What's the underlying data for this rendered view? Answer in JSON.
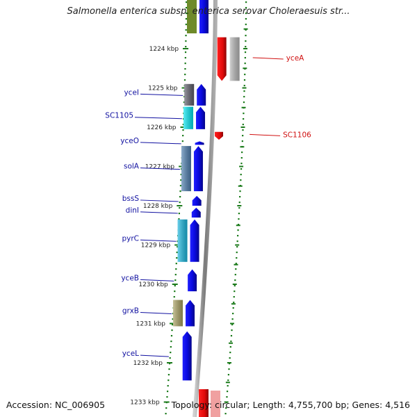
{
  "title": "Salmonella enterica subsp. enterica serovar Choleraesuis str...",
  "footer": {
    "accession": "Accession: NC_006905",
    "summary": "Topology: circular; Length: 4,755,700 bp; Genes: 4,516"
  },
  "colors": {
    "forward_gene": "#0a0ae6",
    "reverse_gene": "#e60a0a",
    "ruler_dots": "#1a7a1a",
    "backbone": "#8a8a8a"
  },
  "ticks": [
    {
      "label": "1224 kbp",
      "kbp": 1224
    },
    {
      "label": "1225 kbp",
      "kbp": 1225
    },
    {
      "label": "1226 kbp",
      "kbp": 1226
    },
    {
      "label": "1227 kbp",
      "kbp": 1227
    },
    {
      "label": "1228 kbp",
      "kbp": 1228
    },
    {
      "label": "1229 kbp",
      "kbp": 1229
    },
    {
      "label": "1230 kbp",
      "kbp": 1230
    },
    {
      "label": "1231 kbp",
      "kbp": 1231
    },
    {
      "label": "1232 kbp",
      "kbp": 1232
    },
    {
      "label": "1233 kbp",
      "kbp": 1233
    }
  ],
  "genes_left": [
    {
      "name": "yceI",
      "start_kbp": 1224.9,
      "end_kbp": 1225.45,
      "cog_color": "#5e5e6a"
    },
    {
      "name": "SC1105",
      "start_kbp": 1225.48,
      "end_kbp": 1226.05,
      "cog_color": "#00e5f0"
    },
    {
      "name": "yceO",
      "start_kbp": 1226.36,
      "end_kbp": 1226.45,
      "cog_color": ""
    },
    {
      "name": "solA",
      "start_kbp": 1226.48,
      "end_kbp": 1227.63,
      "cog_color": "#4f7fb0"
    },
    {
      "name": "bssS",
      "start_kbp": 1227.75,
      "end_kbp": 1228.0,
      "cog_color": ""
    },
    {
      "name": "dinI",
      "start_kbp": 1228.05,
      "end_kbp": 1228.3,
      "cog_color": ""
    },
    {
      "name": "pyrC",
      "start_kbp": 1228.35,
      "end_kbp": 1229.43,
      "cog_color": "#1ab8e0"
    },
    {
      "name": "yceB",
      "start_kbp": 1229.62,
      "end_kbp": 1230.18,
      "cog_color": ""
    },
    {
      "name": "grxB",
      "start_kbp": 1230.4,
      "end_kbp": 1231.07,
      "cog_color": "#a8a060"
    },
    {
      "name": "yceL",
      "start_kbp": 1231.2,
      "end_kbp": 1232.45,
      "cog_color": ""
    }
  ],
  "genes_right": [
    {
      "name": "yceA",
      "start_kbp": 1223.71,
      "end_kbp": 1224.82,
      "cog_color": "#b8b8b8"
    },
    {
      "name": "SC1106",
      "start_kbp": 1226.12,
      "end_kbp": 1226.32,
      "cog_color": ""
    }
  ]
}
